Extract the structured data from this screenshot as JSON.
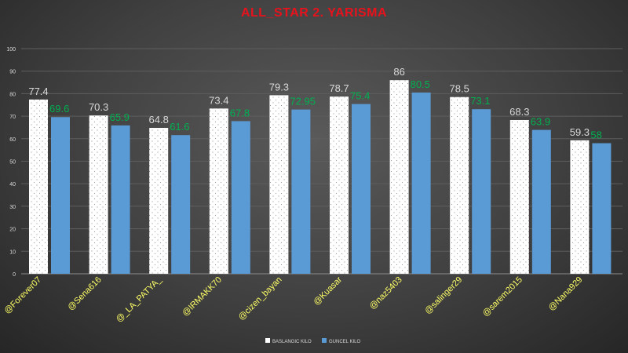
{
  "chart_data": {
    "type": "bar",
    "title": "ALL_STAR  2. YARISMA",
    "categories": [
      "@Forever07",
      "@Sena616",
      "@_LA_PATYA_",
      "@IRMAKK70",
      "@cizen_bayan",
      "@Kuasar",
      "@naz5403",
      "@salinger29",
      "@sarem2015",
      "@Nana929"
    ],
    "series": [
      {
        "name": "BASLANGIC KILO",
        "values": [
          77.4,
          70.3,
          64.8,
          73.4,
          79.3,
          78.7,
          86,
          78.5,
          68.3,
          59.3
        ],
        "labels": [
          "77.4",
          "70.3",
          "64.8",
          "73.4",
          "79.3",
          "78.7",
          "86",
          "78.5",
          "68.3",
          "59.3"
        ],
        "color": "#ffffff",
        "label_color": "#d9d9d9"
      },
      {
        "name": "GUNCEL KILO",
        "values": [
          69.6,
          65.9,
          61.6,
          67.8,
          72.95,
          75.4,
          80.5,
          73.1,
          63.9,
          58
        ],
        "labels": [
          "69.6",
          "65.9",
          "61.6",
          "67.8",
          "72.95",
          "75.4",
          "80.5",
          "73.1",
          "63.9",
          "58"
        ],
        "color": "#5b9bd5",
        "label_color": "#00b050"
      }
    ],
    "ylim": [
      0,
      100
    ],
    "yticks": [
      "0",
      "10",
      "20",
      "30",
      "40",
      "50",
      "60",
      "70",
      "80",
      "90",
      "100"
    ],
    "category_label_color": "#ffff66",
    "gridlines": true,
    "legend_position": "bottom"
  }
}
